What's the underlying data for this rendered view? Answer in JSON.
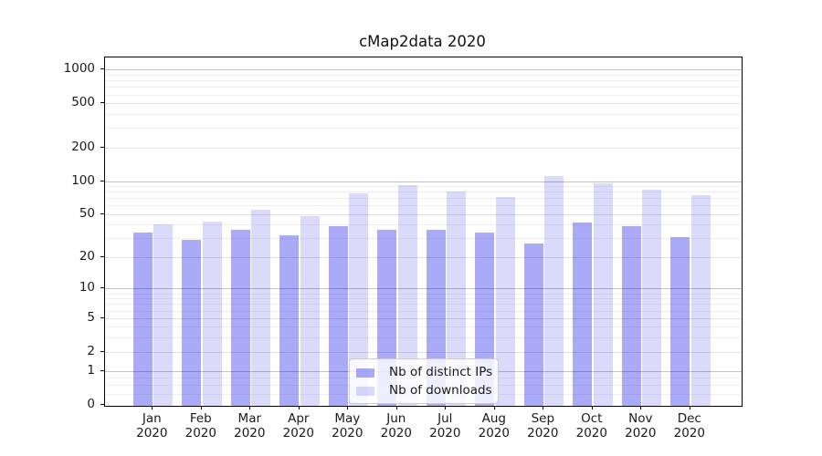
{
  "chart_data": {
    "type": "bar",
    "title": "cMap2data 2020",
    "categories": [
      "Jan 2020",
      "Feb 2020",
      "Mar 2020",
      "Apr 2020",
      "May 2020",
      "Jun 2020",
      "Jul 2020",
      "Aug 2020",
      "Sep 2020",
      "Oct 2020",
      "Nov 2020",
      "Dec 2020"
    ],
    "x_tick_labels": [
      {
        "month": "Jan",
        "year": "2020"
      },
      {
        "month": "Feb",
        "year": "2020"
      },
      {
        "month": "Mar",
        "year": "2020"
      },
      {
        "month": "Apr",
        "year": "2020"
      },
      {
        "month": "May",
        "year": "2020"
      },
      {
        "month": "Jun",
        "year": "2020"
      },
      {
        "month": "Jul",
        "year": "2020"
      },
      {
        "month": "Aug",
        "year": "2020"
      },
      {
        "month": "Sep",
        "year": "2020"
      },
      {
        "month": "Oct",
        "year": "2020"
      },
      {
        "month": "Nov",
        "year": "2020"
      },
      {
        "month": "Dec",
        "year": "2020"
      }
    ],
    "series": [
      {
        "name": "Nb of distinct IPs",
        "color": "#aaaaf6",
        "fill_rgba": "rgba(0,0,230,0.335)",
        "values": [
          34,
          29,
          36,
          32,
          39,
          36,
          36,
          34,
          27,
          42,
          39,
          31
        ]
      },
      {
        "name": "Nb of downloads",
        "color": "#dbdbfa",
        "fill_rgba": "rgba(0,0,230,0.145)",
        "values": [
          40,
          43,
          55,
          48,
          78,
          91,
          80,
          72,
          112,
          96,
          83,
          74
        ]
      }
    ],
    "xlabel": "",
    "ylabel": "",
    "yscale": "symlog",
    "yticks": [
      0,
      1,
      2,
      5,
      10,
      20,
      50,
      100,
      200,
      500,
      1000
    ],
    "ylim": [
      0,
      1289
    ],
    "grid": true,
    "legend_position": "lower center",
    "gridline_values": {
      "decade": [
        1,
        10,
        100,
        1000
      ],
      "major": [
        2,
        5,
        20,
        50,
        200,
        500
      ],
      "minor": [
        0.25,
        0.5,
        0.75,
        3,
        4,
        6,
        7,
        8,
        9,
        30,
        40,
        60,
        70,
        80,
        90,
        300,
        400,
        600,
        700,
        800,
        900
      ]
    }
  }
}
